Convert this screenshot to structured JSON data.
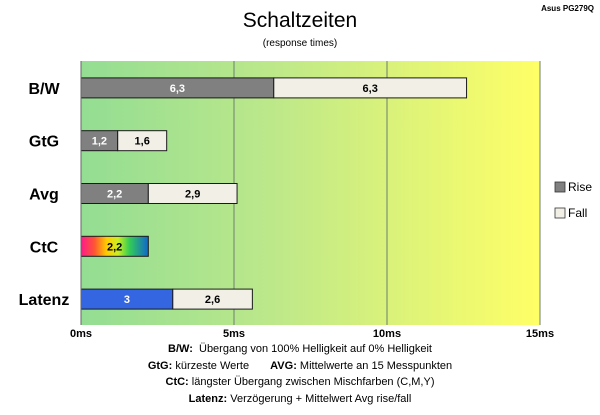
{
  "chart_data": {
    "type": "bar",
    "orientation": "horizontal",
    "stacked": true,
    "title": "Schaltzeiten",
    "subtitle": "(response times)",
    "corner_label": "Asus PG279Q",
    "categories": [
      "B/W",
      "GtG",
      "Avg",
      "CtC",
      "Latenz"
    ],
    "series": [
      {
        "name": "Rise",
        "values": [
          6.3,
          1.2,
          2.2,
          2.2,
          3.0
        ],
        "labels": [
          "6,3",
          "1,2",
          "2,2",
          "2,2",
          "3"
        ]
      },
      {
        "name": "Fall",
        "values": [
          6.3,
          1.6,
          2.9,
          null,
          2.6
        ],
        "labels": [
          "6,3",
          "1,6",
          "2,9",
          "",
          "2,6"
        ]
      }
    ],
    "x_ticks": [
      0,
      5,
      10,
      15
    ],
    "x_tick_labels": [
      "0ms",
      "5ms",
      "10ms",
      "15ms"
    ],
    "xlim": [
      0,
      15
    ],
    "grid": "vertical",
    "legend_position": "right",
    "colors": {
      "rise": "#808080",
      "fall": "#f2f0e6",
      "latenz_rise": "#3366e0",
      "background_start": "#93dd93",
      "background_end": "#ffff66"
    }
  },
  "footnotes": [
    {
      "term": "B/W:",
      "text": "Übergang von 100% Helligkeit auf 0% Helligkeit"
    },
    {
      "term": "GtG:",
      "text": "kürzeste  Werte"
    },
    {
      "term": "AVG:",
      "text": "Mittelwerte  an 15 Messpunkten"
    },
    {
      "term": "CtC:",
      "text": "längster Übergang  zwischen Mischfarben  (C,M,Y)"
    },
    {
      "term": "Latenz:",
      "text": "Verzögerung  + Mittelwert  Avg rise/fall"
    }
  ]
}
